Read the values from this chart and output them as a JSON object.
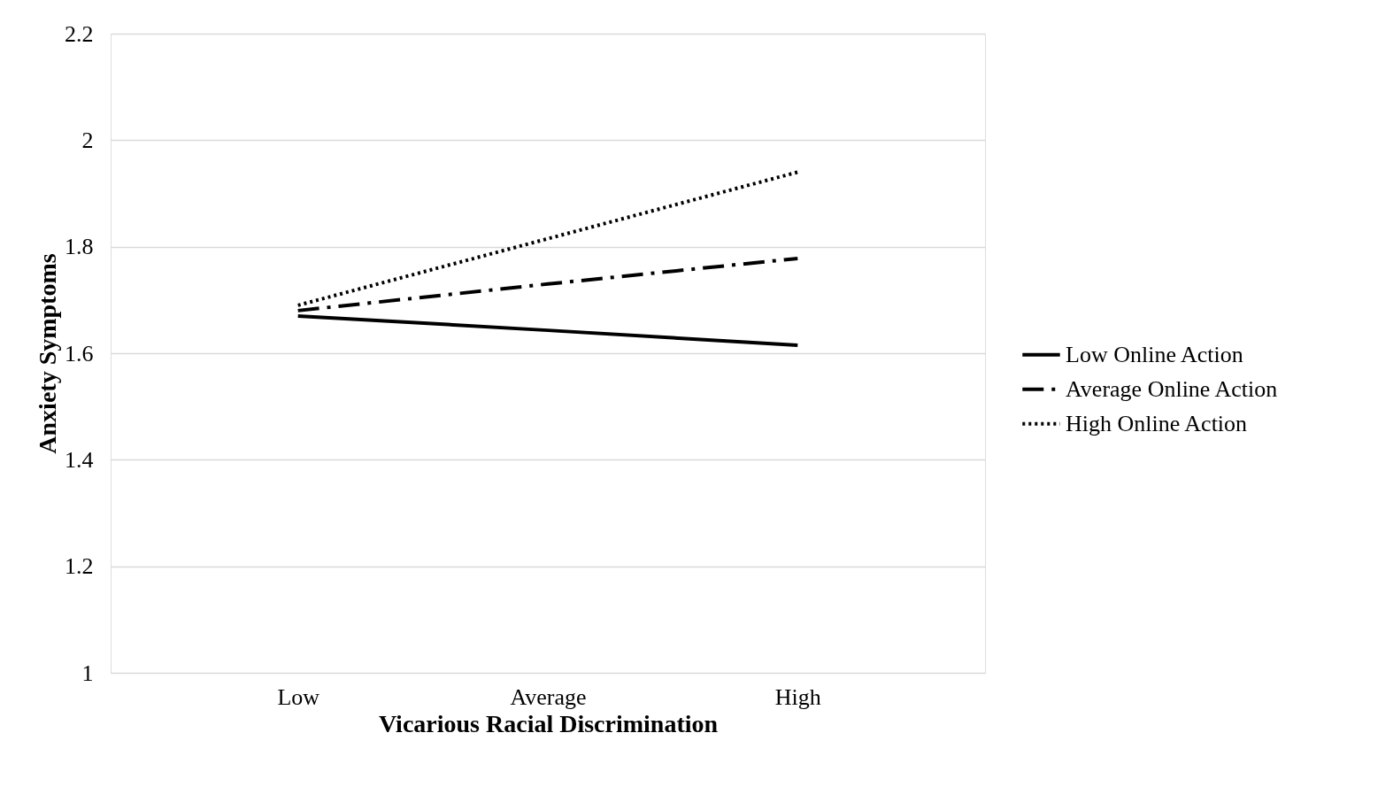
{
  "chart_data": {
    "type": "line",
    "xlabel": "Vicarious Racial Discrimination",
    "ylabel": "Anxiety Symptoms",
    "categories": [
      "Low",
      "Average",
      "High"
    ],
    "series": [
      {
        "name": "Low Online Action",
        "color": "#000000",
        "line_style": "solid",
        "values": [
          1.67,
          1.643,
          1.615
        ]
      },
      {
        "name": "Average Online Action",
        "color": "#000000",
        "line_style": "dashed",
        "values": [
          1.68,
          1.73,
          1.778
        ]
      },
      {
        "name": "High Online Action",
        "color": "#000000",
        "line_style": "dotted",
        "values": [
          1.69,
          1.815,
          1.94
        ]
      }
    ],
    "ylim": [
      1,
      2.2
    ],
    "yticks": [
      1,
      1.2,
      1.4,
      1.6,
      1.8,
      2,
      2.2
    ],
    "grid": "y",
    "legend": "right",
    "marker": "none"
  }
}
